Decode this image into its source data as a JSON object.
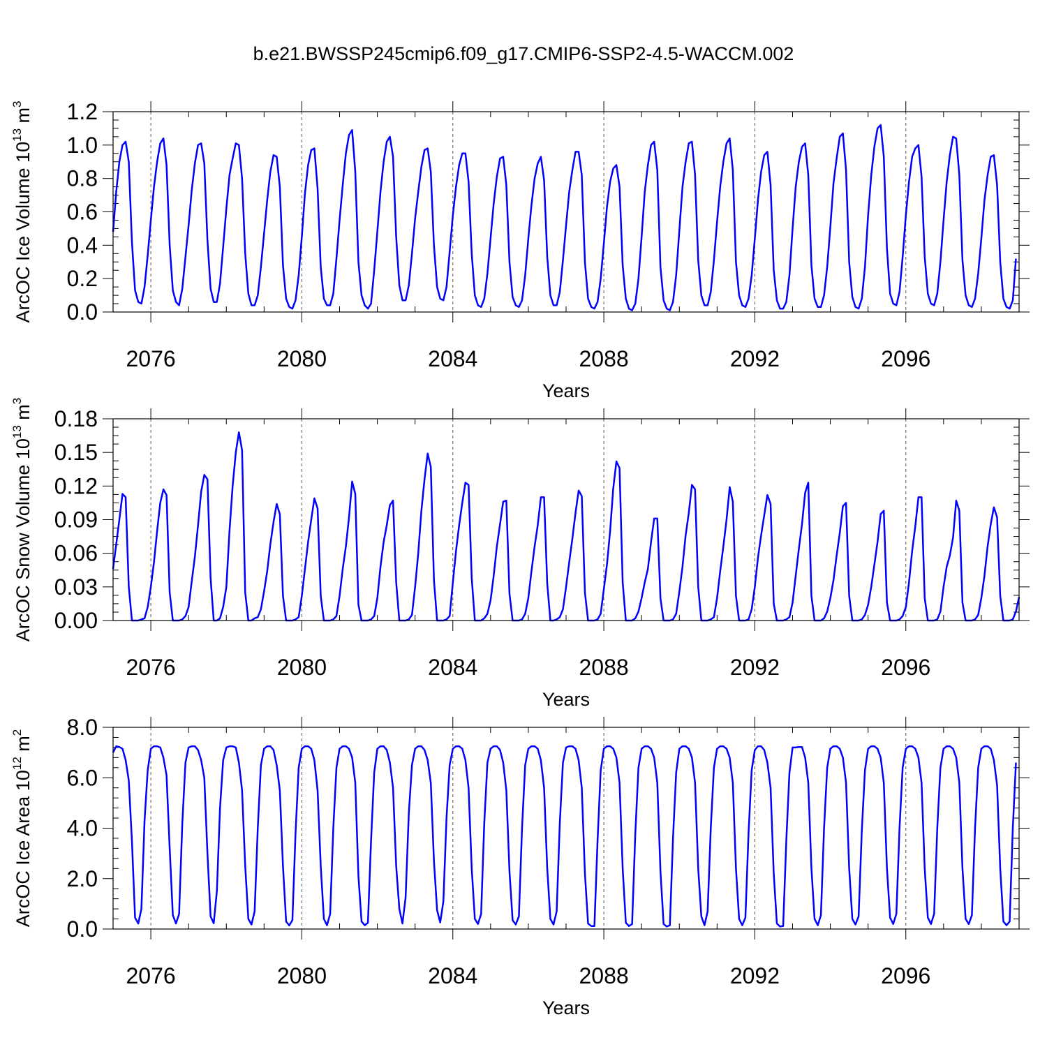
{
  "figure": {
    "title": "b.e21.BWSSP245cmip6.f09_g17.CMIP6-SSP2-4.5-WACCM.002"
  },
  "colors": {
    "line": "#0000ff",
    "axis": "#000000",
    "gridline": "#555555"
  },
  "chart_data": [
    {
      "type": "line",
      "id": "ice-volume",
      "ylabel": {
        "prefix": "ArcOC Ice Volume 10",
        "exp": "13",
        "unit": " m",
        "unit_exp": "3"
      },
      "xlabel": "Years",
      "xlim": [
        2075.0,
        2099.0
      ],
      "ylim": [
        0.0,
        1.2
      ],
      "yticks": [
        0.0,
        0.2,
        0.4,
        0.6,
        0.8,
        1.0,
        1.2
      ],
      "ytick_labels": [
        "0.0",
        "0.2",
        "0.4",
        "0.6",
        "0.8",
        "1.0",
        "1.2"
      ],
      "yminor_step": 0.05,
      "xticks": [
        2076,
        2080,
        2084,
        2088,
        2092,
        2096
      ],
      "xtick_labels": [
        "2076",
        "2080",
        "2084",
        "2088",
        "2092",
        "2096"
      ],
      "grid": "dashed vertical lines at labeled years",
      "x_start": 2075.0,
      "x_step_months": 1,
      "series": [
        {
          "values": [
            0.48,
            0.72,
            0.9,
            1.0,
            1.02,
            0.9,
            0.42,
            0.13,
            0.06,
            0.05,
            0.15,
            0.34,
            0.55,
            0.75,
            0.9,
            1.01,
            1.04,
            0.88,
            0.4,
            0.13,
            0.06,
            0.04,
            0.14,
            0.33,
            0.52,
            0.73,
            0.89,
            1.0,
            1.01,
            0.89,
            0.43,
            0.14,
            0.06,
            0.06,
            0.17,
            0.39,
            0.62,
            0.82,
            0.92,
            1.01,
            1.0,
            0.8,
            0.35,
            0.11,
            0.04,
            0.04,
            0.1,
            0.27,
            0.47,
            0.67,
            0.84,
            0.94,
            0.93,
            0.75,
            0.28,
            0.08,
            0.03,
            0.02,
            0.07,
            0.22,
            0.45,
            0.71,
            0.88,
            0.97,
            0.98,
            0.74,
            0.27,
            0.08,
            0.04,
            0.04,
            0.11,
            0.32,
            0.55,
            0.76,
            0.95,
            1.06,
            1.09,
            0.84,
            0.3,
            0.1,
            0.04,
            0.02,
            0.05,
            0.25,
            0.48,
            0.72,
            0.9,
            1.02,
            1.05,
            0.93,
            0.45,
            0.16,
            0.07,
            0.07,
            0.16,
            0.35,
            0.56,
            0.72,
            0.87,
            0.97,
            0.98,
            0.84,
            0.4,
            0.15,
            0.08,
            0.07,
            0.15,
            0.36,
            0.58,
            0.75,
            0.88,
            0.95,
            0.95,
            0.78,
            0.35,
            0.1,
            0.04,
            0.03,
            0.08,
            0.23,
            0.44,
            0.65,
            0.81,
            0.92,
            0.93,
            0.76,
            0.3,
            0.09,
            0.04,
            0.03,
            0.07,
            0.22,
            0.44,
            0.64,
            0.8,
            0.89,
            0.93,
            0.79,
            0.33,
            0.1,
            0.04,
            0.04,
            0.12,
            0.31,
            0.52,
            0.72,
            0.85,
            0.96,
            0.96,
            0.82,
            0.3,
            0.08,
            0.03,
            0.02,
            0.06,
            0.2,
            0.41,
            0.63,
            0.78,
            0.86,
            0.88,
            0.75,
            0.28,
            0.08,
            0.02,
            0.01,
            0.05,
            0.2,
            0.45,
            0.72,
            0.88,
            1.0,
            1.02,
            0.85,
            0.27,
            0.07,
            0.02,
            0.01,
            0.06,
            0.22,
            0.49,
            0.75,
            0.9,
            1.01,
            1.02,
            0.82,
            0.31,
            0.1,
            0.04,
            0.04,
            0.12,
            0.31,
            0.54,
            0.75,
            0.9,
            1.01,
            1.04,
            0.85,
            0.3,
            0.1,
            0.04,
            0.03,
            0.08,
            0.22,
            0.44,
            0.67,
            0.84,
            0.94,
            0.96,
            0.76,
            0.25,
            0.07,
            0.02,
            0.02,
            0.06,
            0.22,
            0.5,
            0.75,
            0.9,
            0.99,
            1.01,
            0.82,
            0.28,
            0.08,
            0.03,
            0.03,
            0.1,
            0.27,
            0.51,
            0.77,
            0.92,
            1.05,
            1.07,
            0.85,
            0.3,
            0.09,
            0.03,
            0.02,
            0.08,
            0.27,
            0.58,
            0.82,
            0.99,
            1.1,
            1.12,
            0.93,
            0.38,
            0.11,
            0.05,
            0.04,
            0.12,
            0.33,
            0.58,
            0.78,
            0.93,
            0.98,
            1.0,
            0.81,
            0.33,
            0.11,
            0.05,
            0.04,
            0.11,
            0.3,
            0.55,
            0.78,
            0.94,
            1.05,
            1.04,
            0.82,
            0.31,
            0.1,
            0.04,
            0.03,
            0.08,
            0.23,
            0.44,
            0.67,
            0.82,
            0.93,
            0.94,
            0.76,
            0.3,
            0.08,
            0.03,
            0.02,
            0.07,
            0.32
          ]
        }
      ]
    },
    {
      "type": "line",
      "id": "snow-volume",
      "ylabel": {
        "prefix": "ArcOC Snow Volume 10",
        "exp": "13",
        "unit": " m",
        "unit_exp": "3"
      },
      "xlabel": "Years",
      "xlim": [
        2075.0,
        2099.0
      ],
      "ylim": [
        0.0,
        0.18
      ],
      "yticks": [
        0.0,
        0.03,
        0.06,
        0.09,
        0.12,
        0.15,
        0.18
      ],
      "ytick_labels": [
        "0.00",
        "0.03",
        "0.06",
        "0.09",
        "0.12",
        "0.15",
        "0.18"
      ],
      "yminor_step": 0.0075,
      "xticks": [
        2076,
        2080,
        2084,
        2088,
        2092,
        2096
      ],
      "xtick_labels": [
        "2076",
        "2080",
        "2084",
        "2088",
        "2092",
        "2096"
      ],
      "grid": "dashed vertical lines at labeled years",
      "x_start": 2075.0,
      "x_step_months": 1,
      "series": [
        {
          "values": [
            0.046,
            0.068,
            0.09,
            0.113,
            0.11,
            0.03,
            0.0,
            0.0,
            0.0,
            0.001,
            0.002,
            0.012,
            0.03,
            0.052,
            0.08,
            0.105,
            0.117,
            0.112,
            0.025,
            0.0,
            0.0,
            0.0,
            0.001,
            0.004,
            0.012,
            0.035,
            0.057,
            0.085,
            0.115,
            0.13,
            0.126,
            0.038,
            0.0,
            0.0,
            0.002,
            0.012,
            0.03,
            0.08,
            0.12,
            0.15,
            0.168,
            0.152,
            0.025,
            0.0,
            0.0,
            0.002,
            0.003,
            0.01,
            0.026,
            0.044,
            0.068,
            0.088,
            0.104,
            0.095,
            0.022,
            0.0,
            0.0,
            0.0,
            0.001,
            0.003,
            0.022,
            0.046,
            0.07,
            0.09,
            0.109,
            0.1,
            0.022,
            0.0,
            0.0,
            0.0,
            0.001,
            0.004,
            0.022,
            0.046,
            0.066,
            0.092,
            0.124,
            0.113,
            0.014,
            0.0,
            0.0,
            0.0,
            0.001,
            0.004,
            0.02,
            0.048,
            0.07,
            0.085,
            0.103,
            0.107,
            0.034,
            0.0,
            0.0,
            0.0,
            0.001,
            0.005,
            0.03,
            0.06,
            0.098,
            0.126,
            0.149,
            0.137,
            0.036,
            0.0,
            0.0,
            0.0,
            0.001,
            0.004,
            0.034,
            0.062,
            0.085,
            0.105,
            0.123,
            0.121,
            0.038,
            0.0,
            0.0,
            0.0,
            0.002,
            0.006,
            0.018,
            0.04,
            0.066,
            0.086,
            0.106,
            0.107,
            0.024,
            0.0,
            0.0,
            0.0,
            0.001,
            0.006,
            0.02,
            0.044,
            0.066,
            0.085,
            0.11,
            0.11,
            0.033,
            0.0,
            0.0,
            0.001,
            0.003,
            0.01,
            0.03,
            0.052,
            0.073,
            0.096,
            0.116,
            0.111,
            0.025,
            0.0,
            0.0,
            0.0,
            0.001,
            0.006,
            0.028,
            0.05,
            0.08,
            0.118,
            0.142,
            0.136,
            0.034,
            0.0,
            0.0,
            0.0,
            0.002,
            0.008,
            0.02,
            0.034,
            0.046,
            0.07,
            0.091,
            0.091,
            0.02,
            0.0,
            0.0,
            0.0,
            0.001,
            0.006,
            0.026,
            0.048,
            0.076,
            0.096,
            0.121,
            0.117,
            0.03,
            0.0,
            0.0,
            0.0,
            0.001,
            0.003,
            0.02,
            0.044,
            0.066,
            0.09,
            0.119,
            0.106,
            0.022,
            0.0,
            0.0,
            0.0,
            0.001,
            0.01,
            0.03,
            0.056,
            0.076,
            0.094,
            0.112,
            0.104,
            0.015,
            0.0,
            0.0,
            0.0,
            0.001,
            0.003,
            0.016,
            0.04,
            0.064,
            0.086,
            0.114,
            0.123,
            0.022,
            0.0,
            0.0,
            0.0,
            0.002,
            0.008,
            0.02,
            0.036,
            0.058,
            0.078,
            0.102,
            0.105,
            0.022,
            0.0,
            0.0,
            0.0,
            0.001,
            0.005,
            0.014,
            0.03,
            0.05,
            0.07,
            0.095,
            0.098,
            0.016,
            0.0,
            0.0,
            0.0,
            0.001,
            0.004,
            0.012,
            0.034,
            0.062,
            0.084,
            0.11,
            0.11,
            0.02,
            0.0,
            0.0,
            0.0,
            0.001,
            0.008,
            0.03,
            0.048,
            0.058,
            0.074,
            0.107,
            0.098,
            0.016,
            0.0,
            0.0,
            0.0,
            0.001,
            0.005,
            0.02,
            0.04,
            0.066,
            0.086,
            0.101,
            0.092,
            0.022,
            0.0,
            0.0,
            0.0,
            0.001,
            0.008,
            0.021
          ]
        }
      ]
    },
    {
      "type": "line",
      "id": "ice-area",
      "ylabel": {
        "prefix": "ArcOC Ice Area 10",
        "exp": "12",
        "unit": " m",
        "unit_exp": "2"
      },
      "xlabel": "Years",
      "xlim": [
        2075.0,
        2099.0
      ],
      "ylim": [
        0.0,
        8.0
      ],
      "yticks": [
        0.0,
        2.0,
        4.0,
        6.0,
        8.0
      ],
      "ytick_labels": [
        "0.0",
        "2.0",
        "4.0",
        "6.0",
        "8.0"
      ],
      "yminor_step": 0.4,
      "xticks": [
        2076,
        2080,
        2084,
        2088,
        2092,
        2096
      ],
      "xtick_labels": [
        "2076",
        "2080",
        "2084",
        "2088",
        "2092",
        "2096"
      ],
      "grid": "dashed vertical lines at labeled years",
      "x_start": 2075.0,
      "x_step_months": 1,
      "series": [
        {
          "values": [
            7.0,
            7.25,
            7.22,
            7.15,
            6.7,
            5.9,
            3.5,
            0.45,
            0.22,
            0.8,
            4.3,
            6.3,
            7.15,
            7.25,
            7.25,
            7.2,
            6.8,
            6.1,
            3.2,
            0.55,
            0.22,
            0.6,
            4.2,
            6.6,
            7.2,
            7.25,
            7.25,
            7.1,
            6.7,
            6.0,
            3.0,
            0.5,
            0.23,
            1.5,
            4.8,
            6.7,
            7.2,
            7.25,
            7.25,
            7.2,
            6.6,
            5.5,
            2.5,
            0.4,
            0.18,
            0.7,
            4.0,
            6.5,
            7.15,
            7.25,
            7.25,
            7.1,
            6.5,
            5.5,
            2.5,
            0.3,
            0.14,
            0.35,
            3.8,
            6.4,
            7.15,
            7.25,
            7.25,
            7.15,
            6.7,
            5.5,
            2.5,
            0.4,
            0.15,
            0.6,
            4.0,
            6.4,
            7.15,
            7.25,
            7.25,
            7.15,
            6.8,
            5.8,
            2.1,
            0.3,
            0.15,
            0.25,
            3.5,
            6.2,
            7.15,
            7.25,
            7.25,
            7.1,
            6.6,
            5.6,
            2.5,
            0.8,
            0.22,
            1.25,
            4.6,
            6.5,
            7.15,
            7.25,
            7.25,
            7.1,
            6.7,
            5.8,
            2.7,
            0.75,
            0.26,
            1.1,
            4.4,
            6.5,
            7.15,
            7.25,
            7.25,
            7.15,
            6.7,
            5.6,
            2.4,
            0.4,
            0.2,
            0.6,
            4.2,
            6.6,
            7.15,
            7.25,
            7.25,
            7.1,
            6.6,
            5.5,
            2.3,
            0.35,
            0.18,
            0.5,
            4.0,
            6.5,
            7.15,
            7.25,
            7.25,
            7.15,
            6.7,
            5.6,
            2.4,
            0.4,
            0.18,
            0.7,
            4.2,
            6.6,
            7.2,
            7.25,
            7.25,
            7.15,
            6.7,
            5.6,
            2.2,
            0.22,
            0.12,
            0.12,
            3.5,
            6.3,
            7.15,
            7.25,
            7.25,
            7.15,
            6.8,
            5.8,
            2.4,
            0.25,
            0.12,
            0.2,
            3.8,
            6.4,
            7.15,
            7.25,
            7.25,
            7.15,
            6.8,
            5.8,
            2.3,
            0.2,
            0.1,
            0.15,
            3.6,
            6.2,
            7.15,
            7.25,
            7.25,
            7.15,
            6.8,
            5.8,
            2.4,
            0.5,
            0.15,
            0.7,
            4.0,
            6.4,
            7.15,
            7.25,
            7.25,
            7.15,
            6.8,
            5.8,
            2.4,
            0.4,
            0.15,
            0.45,
            3.8,
            6.3,
            7.1,
            7.25,
            7.25,
            7.1,
            6.6,
            5.6,
            2.2,
            0.22,
            0.1,
            0.12,
            3.5,
            6.2,
            7.2,
            7.2,
            7.22,
            7.22,
            6.8,
            5.8,
            2.4,
            0.4,
            0.15,
            0.55,
            4.0,
            6.4,
            7.15,
            7.25,
            7.25,
            7.15,
            6.8,
            5.8,
            2.4,
            0.4,
            0.18,
            0.5,
            3.9,
            6.3,
            7.15,
            7.25,
            7.25,
            7.15,
            6.8,
            5.8,
            2.4,
            0.45,
            0.2,
            0.6,
            4.0,
            6.4,
            7.15,
            7.25,
            7.25,
            7.15,
            6.8,
            5.8,
            2.4,
            0.45,
            0.2,
            0.6,
            4.0,
            6.4,
            7.15,
            7.25,
            7.25,
            7.15,
            6.8,
            5.8,
            2.4,
            0.4,
            0.2,
            0.55,
            4.0,
            6.4,
            7.15,
            7.25,
            7.25,
            7.15,
            6.7,
            5.7,
            2.4,
            0.3,
            0.15,
            0.3,
            4.0,
            6.6
          ]
        }
      ]
    }
  ]
}
